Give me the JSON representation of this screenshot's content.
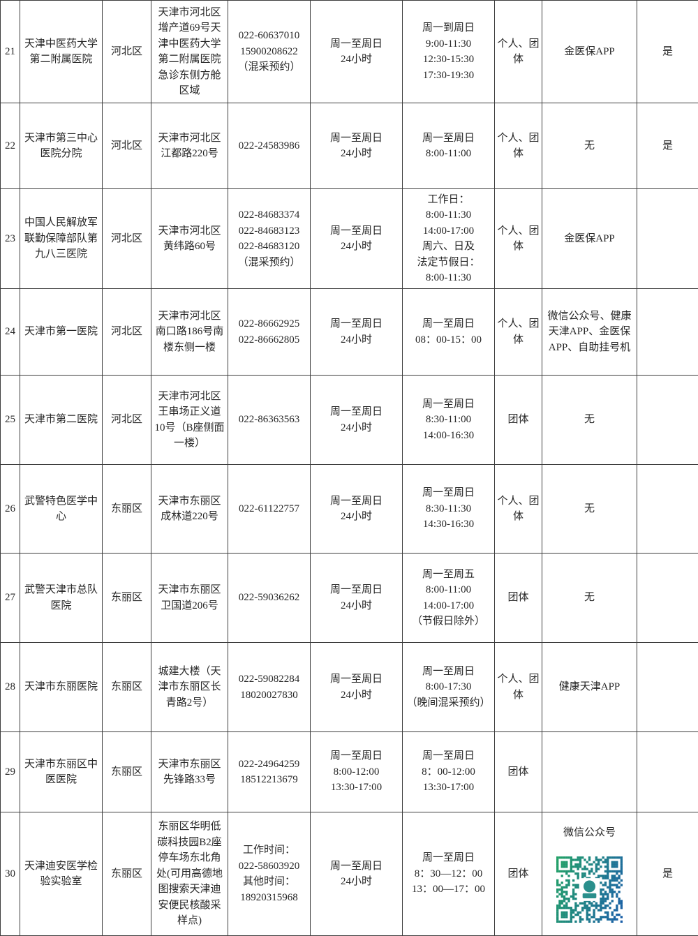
{
  "qr": {
    "green": "#21a066",
    "blue": "#1a5fa8",
    "logo_teal": "#2a8f8c"
  },
  "table": {
    "rows": [
      {
        "no": "21",
        "name": "天津中医药大学第二附属医院",
        "district": "河北区",
        "address": "天津市河北区增产道69号天津中医药大学第二附属医院急诊东侧方舱区域",
        "phone": "022-60637010\n15900208622（混采预约）",
        "hours": "周一至周日\n24小时",
        "service_time": "周一到周日\n9:00-11:30\n12:30-15:30\n17:30-19:30",
        "group": "个人、团体",
        "app": "金医保APP",
        "confirmed": "是"
      },
      {
        "no": "22",
        "name": "天津市第三中心医院分院",
        "district": "河北区",
        "address": "天津市河北区江都路220号",
        "phone": "022-24583986",
        "hours": "周一至周日\n24小时",
        "service_time": "周一至周日\n8:00-11:00",
        "group": "个人、团体",
        "app": "无",
        "confirmed": "是"
      },
      {
        "no": "23",
        "name": "中国人民解放军联勤保障部队第九八三医院",
        "district": "河北区",
        "address": "天津市河北区黄纬路60号",
        "phone": "022-84683374\n022-84683123\n022-84683120\n（混采预约）",
        "hours": "周一至周日\n24小时",
        "service_time": "工作日：\n8:00-11:30\n14:00-17:00\n周六、日及\n法定节假日：\n8:00-11:30",
        "group": "个人、团体",
        "app": "金医保APP",
        "confirmed": ""
      },
      {
        "no": "24",
        "name": "天津市第一医院",
        "district": "河北区",
        "address": "天津市河北区南口路186号南楼东侧一楼",
        "phone": "022-86662925\n022-86662805",
        "hours": "周一至周日\n24小时",
        "service_time": "周一至周日\n08：00-15：00",
        "group": "个人、团体",
        "app": "微信公众号、健康天津APP、金医保APP、自助挂号机",
        "confirmed": ""
      },
      {
        "no": "25",
        "name": "天津市第二医院",
        "district": "河北区",
        "address": "天津市河北区王串场正义道10号（B座侧面一楼）",
        "phone": "022-86363563",
        "hours": "周一至周日\n24小时",
        "service_time": "周一至周日\n8:30-11:00\n14:00-16:30",
        "group": "团体",
        "app": "无",
        "confirmed": ""
      },
      {
        "no": "26",
        "name": "武警特色医学中心",
        "district": "东丽区",
        "address": "天津市东丽区成林道220号",
        "phone": "022-61122757",
        "hours": "周一至周日\n24小时",
        "service_time": "周一至周日\n8:30-11:30\n14:30-16:30",
        "group": "个人、团体",
        "app": "无",
        "confirmed": ""
      },
      {
        "no": "27",
        "name": "武警天津市总队医院",
        "district": "东丽区",
        "address": "天津市东丽区卫国道206号",
        "phone": "022-59036262",
        "hours": "周一至周日\n24小时",
        "service_time": "周一至周五\n8:00-11:00\n14:00-17:00\n（节假日除外）",
        "group": "团体",
        "app": "无",
        "confirmed": ""
      },
      {
        "no": "28",
        "name": "天津市东丽医院",
        "district": "东丽区",
        "address": "城建大楼（天津市东丽区长青路2号）",
        "phone": "022-59082284\n18020027830",
        "hours": "周一至周日\n24小时",
        "service_time": "周一至周日\n8:00-17:30\n（晚间混采预约）",
        "group": "个人、团体",
        "app": "健康天津APP",
        "confirmed": ""
      },
      {
        "no": "29",
        "name": "天津市东丽区中医医院",
        "district": "东丽区",
        "address": "天津市东丽区先锋路33号",
        "phone": "022-24964259\n18512213679",
        "hours": "周一至周日\n8:00-12:00\n13:30-17:00",
        "service_time": "周一至周日\n8：00-12:00\n13:30-17:00",
        "group": "团体",
        "app": "",
        "confirmed": ""
      },
      {
        "no": "30",
        "name": "天津迪安医学检验实验室",
        "district": "东丽区",
        "address": "东丽区华明低碳科技园B2座停车场东北角处(可用高德地图搜索天津迪安便民核酸采样点)",
        "phone": "工作时间：\n022-58603920\n其他时间：\n18920315968",
        "hours": "周一至周日\n24小时",
        "service_time": "周一至周日\n8：30—12：00\n13：00—17：00",
        "group": "团体",
        "app": "微信公众号",
        "confirmed": "是",
        "qr_code": "wechat-qr"
      }
    ]
  }
}
